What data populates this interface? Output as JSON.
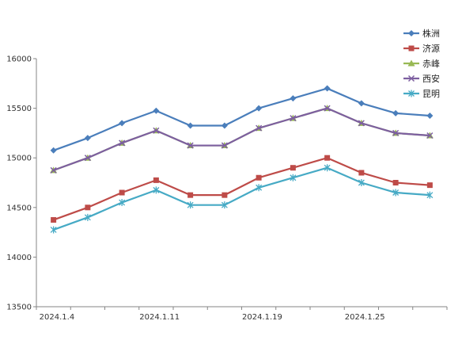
{
  "chart_data": {
    "type": "line",
    "title": "",
    "xlabel": "",
    "ylabel": "",
    "categories": [
      "2024.1.4",
      "",
      "",
      "2024.1.11",
      "",
      "",
      "2024.1.19",
      "",
      "",
      "2024.1.25",
      "",
      ""
    ],
    "ylim": [
      13500,
      16000
    ],
    "yticks": [
      13500,
      14000,
      14500,
      15000,
      15500,
      16000
    ],
    "grid": false,
    "legend_position": "top-right",
    "series": [
      {
        "name": "株洲",
        "color": "#4a7ebb",
        "marker": "diamond",
        "values": [
          15075,
          15200,
          15350,
          15475,
          15325,
          15325,
          15500,
          15600,
          15700,
          15550,
          15450,
          15425
        ]
      },
      {
        "name": "济源",
        "color": "#be4b48",
        "marker": "square",
        "values": [
          14375,
          14500,
          14650,
          14775,
          14625,
          14625,
          14800,
          14900,
          15000,
          14850,
          14750,
          14725
        ]
      },
      {
        "name": "赤峰",
        "color": "#98b954",
        "marker": "triangle",
        "values": [
          14875,
          15000,
          15150,
          15275,
          15125,
          15125,
          15300,
          15400,
          15500,
          15350,
          15250,
          15225
        ]
      },
      {
        "name": "西安",
        "color": "#7d5fa0",
        "marker": "x",
        "values": [
          14875,
          15000,
          15150,
          15275,
          15125,
          15125,
          15300,
          15400,
          15500,
          15350,
          15250,
          15225
        ]
      },
      {
        "name": "昆明",
        "color": "#46aac5",
        "marker": "star",
        "values": [
          14275,
          14400,
          14550,
          14675,
          14525,
          14525,
          14700,
          14800,
          14900,
          14750,
          14650,
          14625
        ]
      }
    ]
  }
}
